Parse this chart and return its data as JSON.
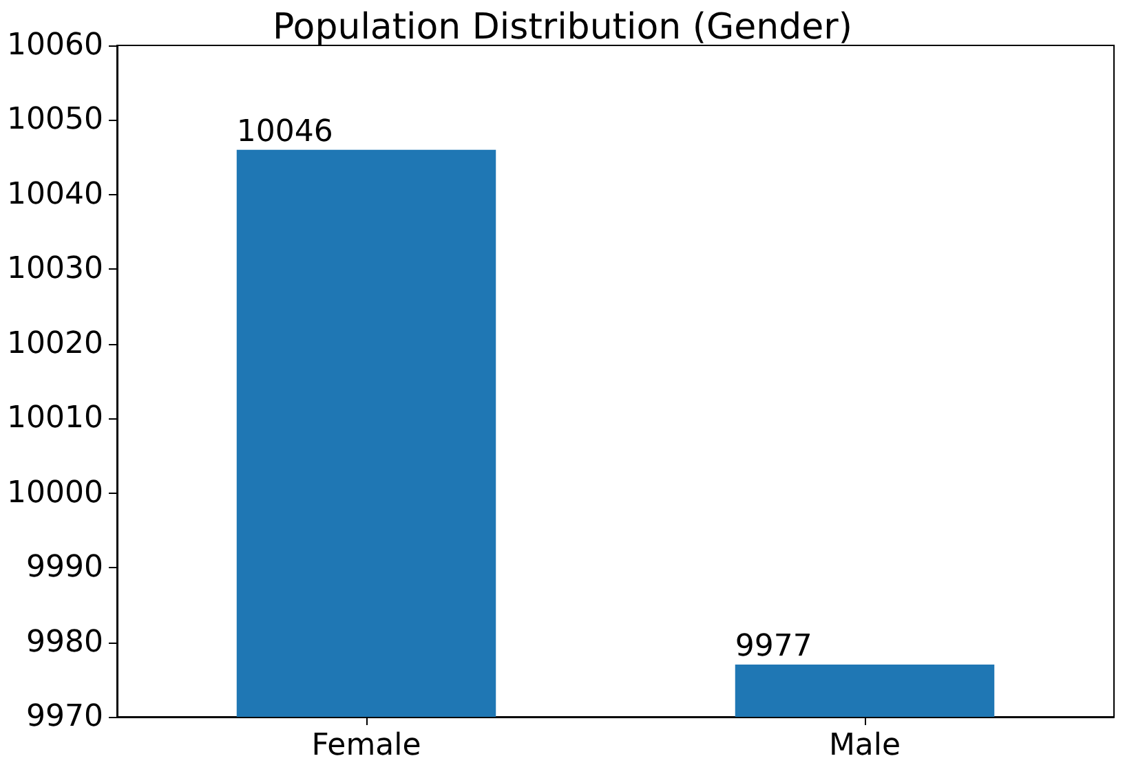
{
  "chart_data": {
    "type": "bar",
    "title": "Population Distribution (Gender)",
    "categories": [
      "Female",
      "Male"
    ],
    "values": [
      10046,
      9977
    ],
    "color": "#1f77b4",
    "ylim": [
      9970,
      10060
    ],
    "yticks": [
      9970,
      9980,
      9990,
      10000,
      10010,
      10020,
      10030,
      10040,
      10050,
      10060
    ],
    "data_labels": true,
    "grid": false
  }
}
